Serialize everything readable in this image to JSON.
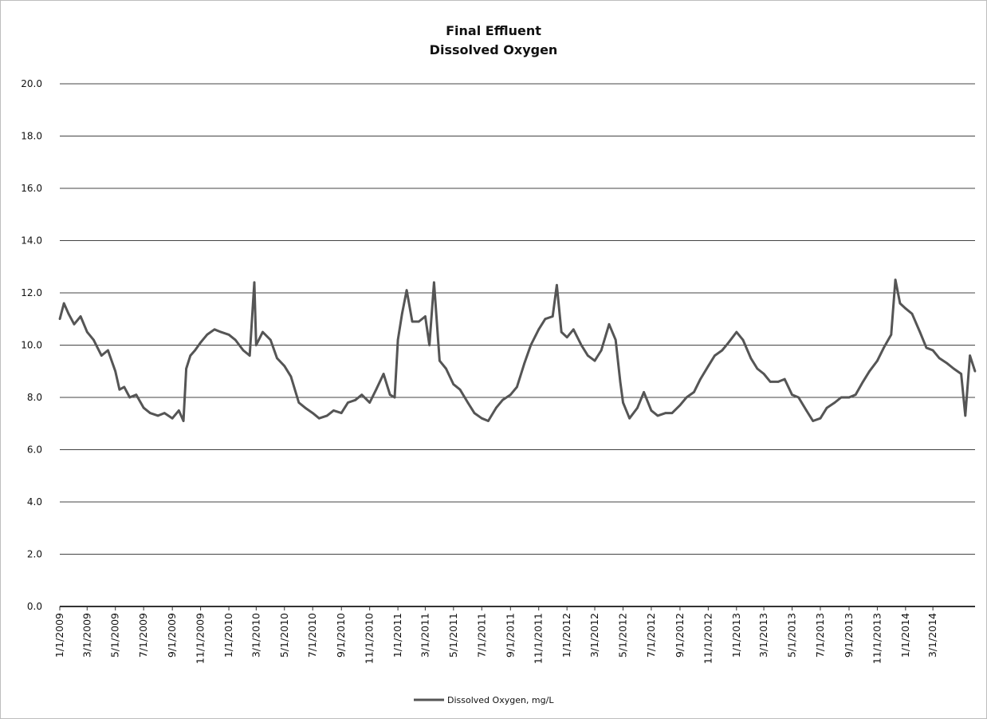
{
  "chart_data": {
    "type": "line",
    "title": "Final Effluent",
    "subtitle": "Dissolved Oxygen",
    "xlabel": "",
    "ylabel": "",
    "ylim": [
      0,
      20
    ],
    "y_ticks": [
      "0.0",
      "2.0",
      "4.0",
      "6.0",
      "8.0",
      "10.0",
      "12.0",
      "14.0",
      "16.0",
      "18.0",
      "20.0"
    ],
    "x_range": [
      "2009-01-01",
      "2014-05-31"
    ],
    "x_ticks": [
      "1/1/2009",
      "3/1/2009",
      "5/1/2009",
      "7/1/2009",
      "9/1/2009",
      "11/1/2009",
      "1/1/2010",
      "3/1/2010",
      "5/1/2010",
      "7/1/2010",
      "9/1/2010",
      "11/1/2010",
      "1/1/2011",
      "3/1/2011",
      "5/1/2011",
      "7/1/2011",
      "9/1/2011",
      "11/1/2011",
      "1/1/2012",
      "3/1/2012",
      "5/1/2012",
      "7/1/2012",
      "9/1/2012",
      "11/1/2012",
      "1/1/2013",
      "3/1/2013",
      "5/1/2013",
      "7/1/2013",
      "9/1/2013",
      "11/1/2013",
      "1/1/2014",
      "3/1/2014"
    ],
    "grid": true,
    "legend_position": "bottom",
    "series": [
      {
        "name": "Dissolved Oxygen, mg/L",
        "color": "#555555",
        "points": [
          [
            "2009-01-01",
            11.0
          ],
          [
            "2009-01-10",
            11.6
          ],
          [
            "2009-01-20",
            11.2
          ],
          [
            "2009-02-01",
            10.8
          ],
          [
            "2009-02-15",
            11.1
          ],
          [
            "2009-03-01",
            10.5
          ],
          [
            "2009-03-15",
            10.2
          ],
          [
            "2009-04-01",
            9.6
          ],
          [
            "2009-04-15",
            9.8
          ],
          [
            "2009-05-01",
            9.0
          ],
          [
            "2009-05-10",
            8.3
          ],
          [
            "2009-05-20",
            8.4
          ],
          [
            "2009-06-01",
            8.0
          ],
          [
            "2009-06-15",
            8.1
          ],
          [
            "2009-07-01",
            7.6
          ],
          [
            "2009-07-15",
            7.4
          ],
          [
            "2009-08-01",
            7.3
          ],
          [
            "2009-08-15",
            7.4
          ],
          [
            "2009-09-01",
            7.2
          ],
          [
            "2009-09-15",
            7.5
          ],
          [
            "2009-09-25",
            7.1
          ],
          [
            "2009-10-01",
            9.1
          ],
          [
            "2009-10-10",
            9.6
          ],
          [
            "2009-10-20",
            9.8
          ],
          [
            "2009-11-01",
            10.1
          ],
          [
            "2009-11-15",
            10.4
          ],
          [
            "2009-12-01",
            10.6
          ],
          [
            "2009-12-15",
            10.5
          ],
          [
            "2010-01-01",
            10.4
          ],
          [
            "2010-01-15",
            10.2
          ],
          [
            "2010-02-01",
            9.8
          ],
          [
            "2010-02-15",
            9.6
          ],
          [
            "2010-02-25",
            12.4
          ],
          [
            "2010-03-01",
            10.0
          ],
          [
            "2010-03-15",
            10.5
          ],
          [
            "2010-04-01",
            10.2
          ],
          [
            "2010-04-15",
            9.5
          ],
          [
            "2010-05-01",
            9.2
          ],
          [
            "2010-05-15",
            8.8
          ],
          [
            "2010-06-01",
            7.8
          ],
          [
            "2010-06-15",
            7.6
          ],
          [
            "2010-07-01",
            7.4
          ],
          [
            "2010-07-15",
            7.2
          ],
          [
            "2010-08-01",
            7.3
          ],
          [
            "2010-08-15",
            7.5
          ],
          [
            "2010-09-01",
            7.4
          ],
          [
            "2010-09-15",
            7.8
          ],
          [
            "2010-10-01",
            7.9
          ],
          [
            "2010-10-15",
            8.1
          ],
          [
            "2010-11-01",
            7.8
          ],
          [
            "2010-11-15",
            8.3
          ],
          [
            "2010-12-01",
            8.9
          ],
          [
            "2010-12-15",
            8.1
          ],
          [
            "2010-12-25",
            8.0
          ],
          [
            "2011-01-01",
            10.2
          ],
          [
            "2011-01-10",
            11.2
          ],
          [
            "2011-01-20",
            12.1
          ],
          [
            "2011-02-01",
            10.9
          ],
          [
            "2011-02-15",
            10.9
          ],
          [
            "2011-03-01",
            11.1
          ],
          [
            "2011-03-10",
            10.0
          ],
          [
            "2011-03-20",
            12.4
          ],
          [
            "2011-04-01",
            9.4
          ],
          [
            "2011-04-15",
            9.1
          ],
          [
            "2011-05-01",
            8.5
          ],
          [
            "2011-05-15",
            8.3
          ],
          [
            "2011-06-01",
            7.8
          ],
          [
            "2011-06-15",
            7.4
          ],
          [
            "2011-07-01",
            7.2
          ],
          [
            "2011-07-15",
            7.1
          ],
          [
            "2011-08-01",
            7.6
          ],
          [
            "2011-08-15",
            7.9
          ],
          [
            "2011-09-01",
            8.1
          ],
          [
            "2011-09-15",
            8.4
          ],
          [
            "2011-10-01",
            9.3
          ],
          [
            "2011-10-15",
            10.0
          ],
          [
            "2011-11-01",
            10.6
          ],
          [
            "2011-11-15",
            11.0
          ],
          [
            "2011-12-01",
            11.1
          ],
          [
            "2011-12-10",
            12.3
          ],
          [
            "2011-12-20",
            10.5
          ],
          [
            "2012-01-01",
            10.3
          ],
          [
            "2012-01-15",
            10.6
          ],
          [
            "2012-02-01",
            10.0
          ],
          [
            "2012-02-15",
            9.6
          ],
          [
            "2012-03-01",
            9.4
          ],
          [
            "2012-03-15",
            9.8
          ],
          [
            "2012-04-01",
            10.8
          ],
          [
            "2012-04-15",
            10.2
          ],
          [
            "2012-04-25",
            8.6
          ],
          [
            "2012-05-01",
            7.8
          ],
          [
            "2012-05-15",
            7.2
          ],
          [
            "2012-06-01",
            7.6
          ],
          [
            "2012-06-15",
            8.2
          ],
          [
            "2012-07-01",
            7.5
          ],
          [
            "2012-07-15",
            7.3
          ],
          [
            "2012-08-01",
            7.4
          ],
          [
            "2012-08-15",
            7.4
          ],
          [
            "2012-09-01",
            7.7
          ],
          [
            "2012-09-15",
            8.0
          ],
          [
            "2012-10-01",
            8.2
          ],
          [
            "2012-10-15",
            8.7
          ],
          [
            "2012-11-01",
            9.2
          ],
          [
            "2012-11-15",
            9.6
          ],
          [
            "2012-12-01",
            9.8
          ],
          [
            "2012-12-15",
            10.1
          ],
          [
            "2013-01-01",
            10.5
          ],
          [
            "2013-01-15",
            10.2
          ],
          [
            "2013-02-01",
            9.5
          ],
          [
            "2013-02-15",
            9.1
          ],
          [
            "2013-03-01",
            8.9
          ],
          [
            "2013-03-15",
            8.6
          ],
          [
            "2013-04-01",
            8.6
          ],
          [
            "2013-04-15",
            8.7
          ],
          [
            "2013-05-01",
            8.1
          ],
          [
            "2013-05-15",
            8.0
          ],
          [
            "2013-06-01",
            7.5
          ],
          [
            "2013-06-15",
            7.1
          ],
          [
            "2013-07-01",
            7.2
          ],
          [
            "2013-07-15",
            7.6
          ],
          [
            "2013-08-01",
            7.8
          ],
          [
            "2013-08-15",
            8.0
          ],
          [
            "2013-09-01",
            8.0
          ],
          [
            "2013-09-15",
            8.1
          ],
          [
            "2013-10-01",
            8.6
          ],
          [
            "2013-10-15",
            9.0
          ],
          [
            "2013-11-01",
            9.4
          ],
          [
            "2013-11-15",
            9.9
          ],
          [
            "2013-12-01",
            10.4
          ],
          [
            "2013-12-10",
            12.5
          ],
          [
            "2013-12-20",
            11.6
          ],
          [
            "2014-01-01",
            11.4
          ],
          [
            "2014-01-15",
            11.2
          ],
          [
            "2014-02-01",
            10.5
          ],
          [
            "2014-02-15",
            9.9
          ],
          [
            "2014-03-01",
            9.8
          ],
          [
            "2014-03-15",
            9.5
          ],
          [
            "2014-04-01",
            9.3
          ],
          [
            "2014-04-15",
            9.1
          ],
          [
            "2014-05-01",
            8.9
          ],
          [
            "2014-05-10",
            7.3
          ],
          [
            "2014-05-20",
            9.6
          ],
          [
            "2014-05-31",
            9.0
          ]
        ]
      }
    ]
  }
}
